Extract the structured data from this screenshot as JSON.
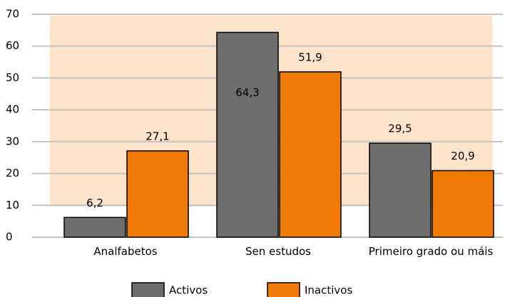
{
  "chart_data": {
    "type": "bar",
    "categories": [
      "Analfabetos",
      "Sen estudos",
      "Primeiro grado ou máis"
    ],
    "series": [
      {
        "name": "Activos",
        "color": "#6e6e6e",
        "values": [
          6.2,
          64.3,
          29.5
        ],
        "value_labels": [
          "6,2",
          "64,3",
          "29,5"
        ]
      },
      {
        "name": "Inactivos",
        "color": "#ef7a06",
        "values": [
          27.1,
          51.9,
          20.9
        ],
        "value_labels": [
          "27,1",
          "51,9",
          "20,9"
        ]
      }
    ],
    "ylim": [
      0,
      70
    ],
    "yticks": [
      0,
      10,
      20,
      30,
      40,
      50,
      60,
      70
    ],
    "grid": true,
    "legend": "bottom"
  }
}
